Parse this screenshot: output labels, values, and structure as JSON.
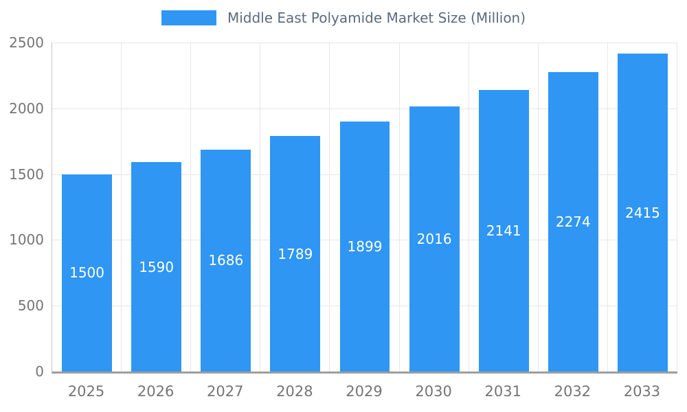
{
  "chart_data": {
    "type": "bar",
    "title": "Middle East Polyamide Market Size (Million)",
    "categories": [
      "2025",
      "2026",
      "2027",
      "2028",
      "2029",
      "2030",
      "2031",
      "2032",
      "2033"
    ],
    "values": [
      1500,
      1590,
      1686,
      1789,
      1899,
      2016,
      2141,
      2274,
      2415
    ],
    "xlabel": "",
    "ylabel": "",
    "ylim": [
      0,
      2500
    ],
    "y_ticks": [
      0,
      500,
      1000,
      1500,
      2000,
      2500
    ],
    "grid": true,
    "legend_position": "top-center",
    "value_labels": "inside-center-white"
  },
  "colors": {
    "bar": "#2F96F4",
    "axis_text": "#757575",
    "title_text": "#5A6B7C",
    "gridline": "#e6e6e6",
    "axis_line": "#9e9e9e",
    "value_label": "#ffffff",
    "background": "#ffffff"
  }
}
